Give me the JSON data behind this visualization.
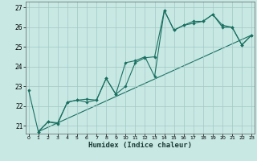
{
  "xlabel": "Humidex (Indice chaleur)",
  "xlim": [
    -0.3,
    23.3
  ],
  "ylim": [
    20.6,
    27.3
  ],
  "xticks": [
    0,
    1,
    2,
    3,
    4,
    5,
    6,
    7,
    8,
    9,
    10,
    11,
    12,
    13,
    14,
    15,
    16,
    17,
    18,
    19,
    20,
    21,
    22,
    23
  ],
  "yticks": [
    21,
    22,
    23,
    24,
    25,
    26,
    27
  ],
  "bg_color": "#c8e8e4",
  "grid_color": "#a4c8c4",
  "line_color": "#1a7060",
  "line1_x": [
    0,
    1,
    2,
    3,
    4,
    5,
    6,
    7,
    8,
    9,
    10,
    11,
    12,
    13,
    14,
    15,
    16,
    17,
    18,
    19,
    20,
    21,
    22,
    23
  ],
  "line1_y": [
    22.8,
    20.7,
    21.2,
    21.15,
    22.2,
    22.3,
    22.35,
    22.3,
    23.4,
    22.6,
    23.0,
    24.2,
    24.45,
    24.5,
    26.85,
    25.85,
    26.1,
    26.2,
    26.3,
    26.65,
    26.0,
    26.0,
    25.1,
    25.6
  ],
  "line2_x": [
    1,
    2,
    3,
    4,
    5,
    6,
    7,
    8,
    9,
    10,
    11,
    12,
    13,
    14,
    15,
    16,
    17,
    18,
    19,
    20,
    21,
    22,
    23
  ],
  "line2_y": [
    20.7,
    21.2,
    21.1,
    22.2,
    22.3,
    22.2,
    22.3,
    23.4,
    22.6,
    24.2,
    24.3,
    24.5,
    23.5,
    26.85,
    25.85,
    26.1,
    26.3,
    26.3,
    26.65,
    26.1,
    26.0,
    25.1,
    25.6
  ],
  "line3_x": [
    1,
    23
  ],
  "line3_y": [
    20.7,
    25.6
  ]
}
